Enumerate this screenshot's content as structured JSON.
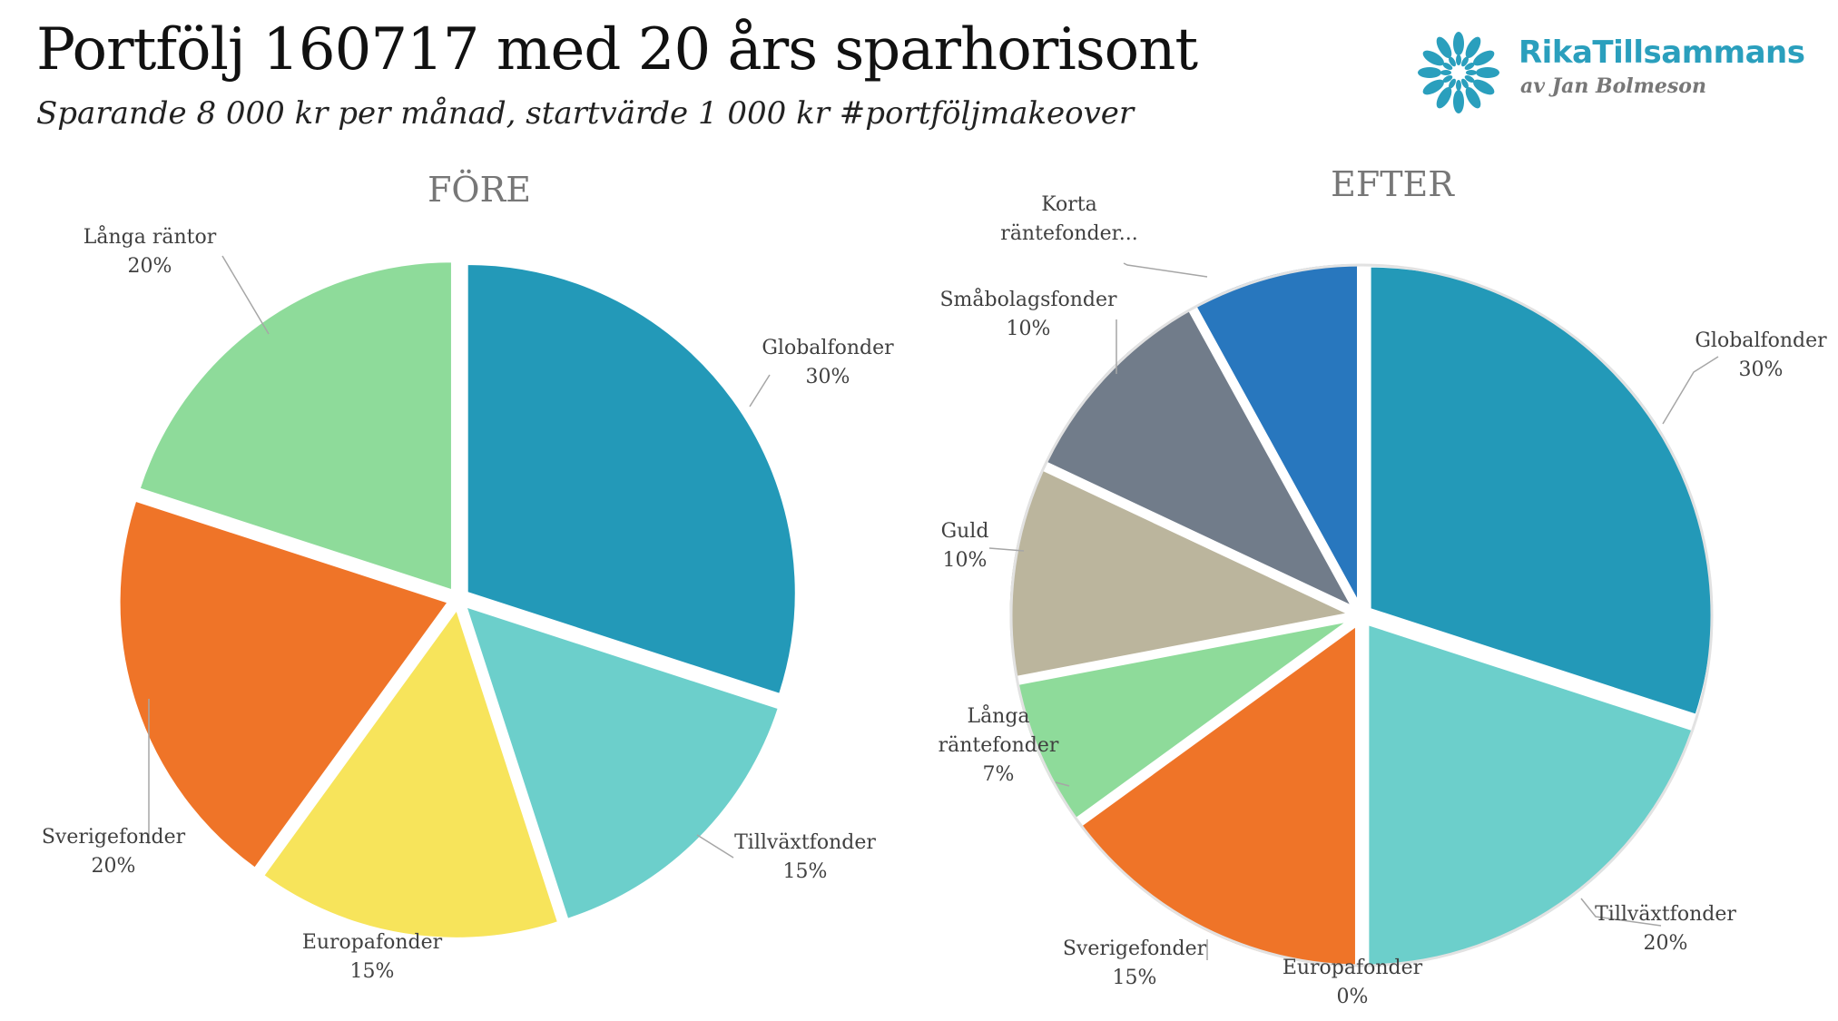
{
  "header": {
    "title": "Portfölj 160717 med 20 års sparhorisont",
    "subtitle": "Sparande 8 000 kr per månad, startvärde 1 000 kr #portföljmakeover"
  },
  "logo": {
    "brand": "RikaTillsammans",
    "tagline": "av Jan Bolmeson",
    "icon": "flower-logo-icon",
    "color": "#2a9fbd"
  },
  "chart_data": [
    {
      "type": "pie",
      "title": "FÖRE",
      "slices": [
        {
          "label": "Globalfonder",
          "value": 30,
          "value_label": "30%",
          "color": "#2399b8"
        },
        {
          "label": "Tillväxtfonder",
          "value": 15,
          "value_label": "15%",
          "color": "#6ccfcb"
        },
        {
          "label": "Europafonder",
          "value": 15,
          "value_label": "15%",
          "color": "#f7e45b"
        },
        {
          "label": "Sverigefonder",
          "value": 20,
          "value_label": "20%",
          "color": "#ef7428"
        },
        {
          "label": "Långa räntor",
          "value": 20,
          "value_label": "20%",
          "color": "#8edb9a"
        }
      ]
    },
    {
      "type": "pie",
      "title": "EFTER",
      "slices": [
        {
          "label": "Globalfonder",
          "value": 30,
          "value_label": "30%",
          "color": "#2399b8"
        },
        {
          "label": "Tillväxtfonder",
          "value": 20,
          "value_label": "20%",
          "color": "#6ccfcb"
        },
        {
          "label": "Europafonder",
          "value": 0,
          "value_label": "0%",
          "color": "#f7e45b"
        },
        {
          "label": "Sverigefonder",
          "value": 15,
          "value_label": "15%",
          "color": "#ef7428"
        },
        {
          "label": "Långa räntefonder",
          "value": 7,
          "value_label": "7%",
          "color": "#8edb9a"
        },
        {
          "label": "Guld",
          "value": 10,
          "value_label": "10%",
          "color": "#bbb59d"
        },
        {
          "label": "Småbolagsfonder",
          "value": 10,
          "value_label": "10%",
          "color": "#717c8a"
        },
        {
          "label": "Korta räntefonder...",
          "value": 8,
          "value_label": "",
          "color": "#2877be"
        }
      ]
    }
  ]
}
